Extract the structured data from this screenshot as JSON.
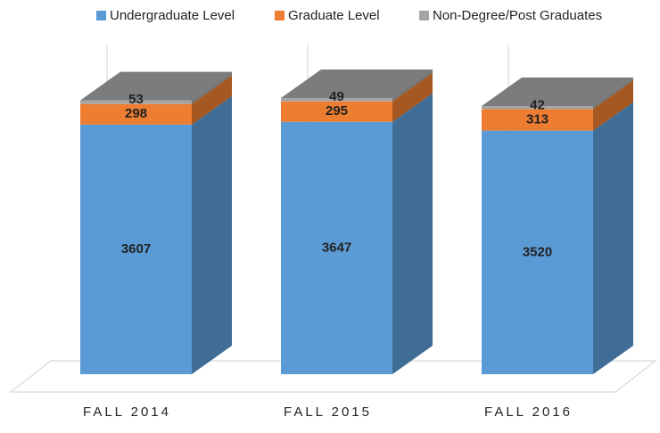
{
  "chart_data": {
    "type": "bar3d_stacked",
    "categories": [
      "FALL 2014",
      "FALL 2015",
      "FALL 2016"
    ],
    "series": [
      {
        "name": "Undergraduate Level",
        "color": "#5b9bd5",
        "values": [
          3607,
          3647,
          3520
        ]
      },
      {
        "name": "Graduate Level",
        "color": "#ed7d31",
        "values": [
          298,
          295,
          313
        ]
      },
      {
        "name": "Non-Degree/Post Graduates",
        "color": "#a5a5a5",
        "values": [
          53,
          49,
          42
        ]
      }
    ],
    "legend": "top"
  }
}
